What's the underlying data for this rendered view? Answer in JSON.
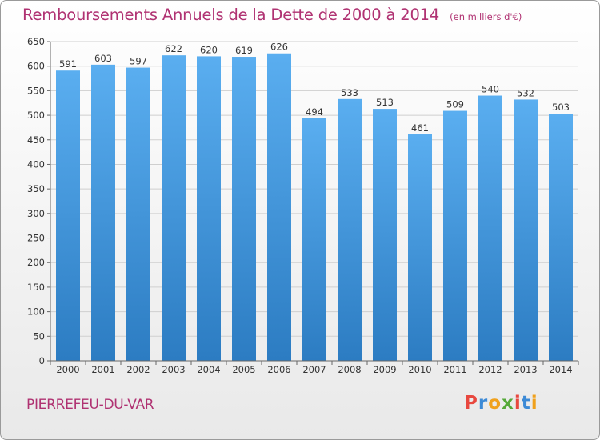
{
  "header": {
    "title": "Remboursements Annuels de la Dette de 2000 à 2014",
    "unit": "(en milliers d'€)"
  },
  "footer": {
    "commune": "PIERREFEU-DU-VAR",
    "logo_text": "Proxiti",
    "logo_colors": [
      "#e8483f",
      "#3c8ad6",
      "#f0a11c",
      "#55a839",
      "#e8483f",
      "#3c8ad6",
      "#f0a11c"
    ]
  },
  "colors": {
    "bar_light": "#5aaef0",
    "bar_dark": "#2c7cc2",
    "title": "#b03272",
    "grid": "#cfcfcf"
  },
  "chart_data": {
    "type": "bar",
    "title": "Remboursements Annuels de la Dette de 2000 à 2014",
    "xlabel": "",
    "ylabel": "",
    "ylim": [
      0,
      650
    ],
    "yticks": [
      0,
      50,
      100,
      150,
      200,
      250,
      300,
      350,
      400,
      450,
      500,
      550,
      600,
      650
    ],
    "grid": true,
    "categories": [
      "2000",
      "2001",
      "2002",
      "2003",
      "2004",
      "2005",
      "2006",
      "2007",
      "2008",
      "2009",
      "2010",
      "2011",
      "2012",
      "2013",
      "2014"
    ],
    "values": [
      591,
      603,
      597,
      622,
      620,
      619,
      626,
      494,
      533,
      513,
      461,
      509,
      540,
      532,
      503
    ]
  }
}
